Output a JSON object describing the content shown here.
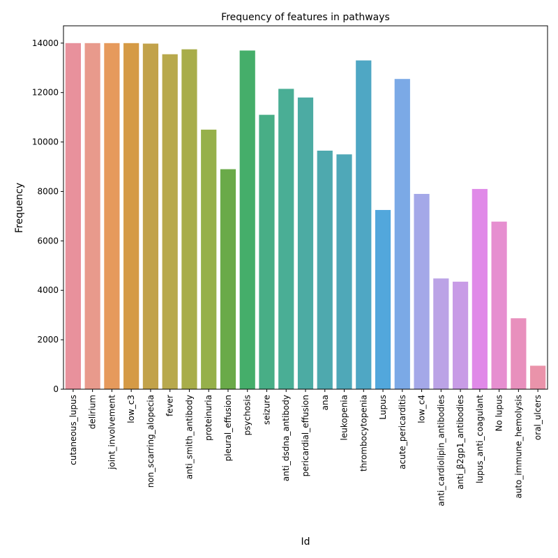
{
  "chart_data": {
    "type": "bar",
    "title": "Frequency of features in pathways",
    "xlabel": "Id",
    "ylabel": "Frequency",
    "ylim": [
      0,
      14700
    ],
    "yticks": [
      0,
      2000,
      4000,
      6000,
      8000,
      10000,
      12000,
      14000
    ],
    "grid": false,
    "categories": [
      "cutaneous_lupus",
      "delirium",
      "joint_involvement",
      "low_c3",
      "non_scarring_alopecia",
      "fever",
      "anti_smith_antibody",
      "proteinuria",
      "pleural_effusion",
      "psychosis",
      "seizure",
      "anti_dsdna_antibody",
      "pericardial_effusion",
      "ana",
      "leukopenia",
      "thrombocytopenia",
      "Lupus",
      "acute_pericarditis",
      "low_c4",
      "anti_cardiolipin_antibodies",
      "anti_β2gp1_antibodies",
      "lupus_anti_coagulant",
      "No lupus",
      "auto_immune_hemolysis",
      "oral_ulcers"
    ],
    "values": [
      14000,
      14000,
      14000,
      14000,
      13980,
      13550,
      13750,
      10500,
      8900,
      13700,
      11100,
      12150,
      11800,
      9650,
      9500,
      13300,
      7250,
      12550,
      7900,
      4480,
      4350,
      8100,
      6780,
      2870,
      950
    ],
    "colors": [
      "#e8919c",
      "#e89a8c",
      "#e69a5c",
      "#d59a45",
      "#c2a24a",
      "#b8a94c",
      "#a8ad4a",
      "#96b04a",
      "#6aaa49",
      "#45ae6a",
      "#48ae86",
      "#4aae95",
      "#4caba3",
      "#4ea9ae",
      "#4fa8b8",
      "#4fa7c4",
      "#52a7dc",
      "#7ba9e6",
      "#a4a8e8",
      "#bba3e6",
      "#c89ce6",
      "#e08ae8",
      "#e68fd0",
      "#e890bd",
      "#ea93aa"
    ]
  }
}
